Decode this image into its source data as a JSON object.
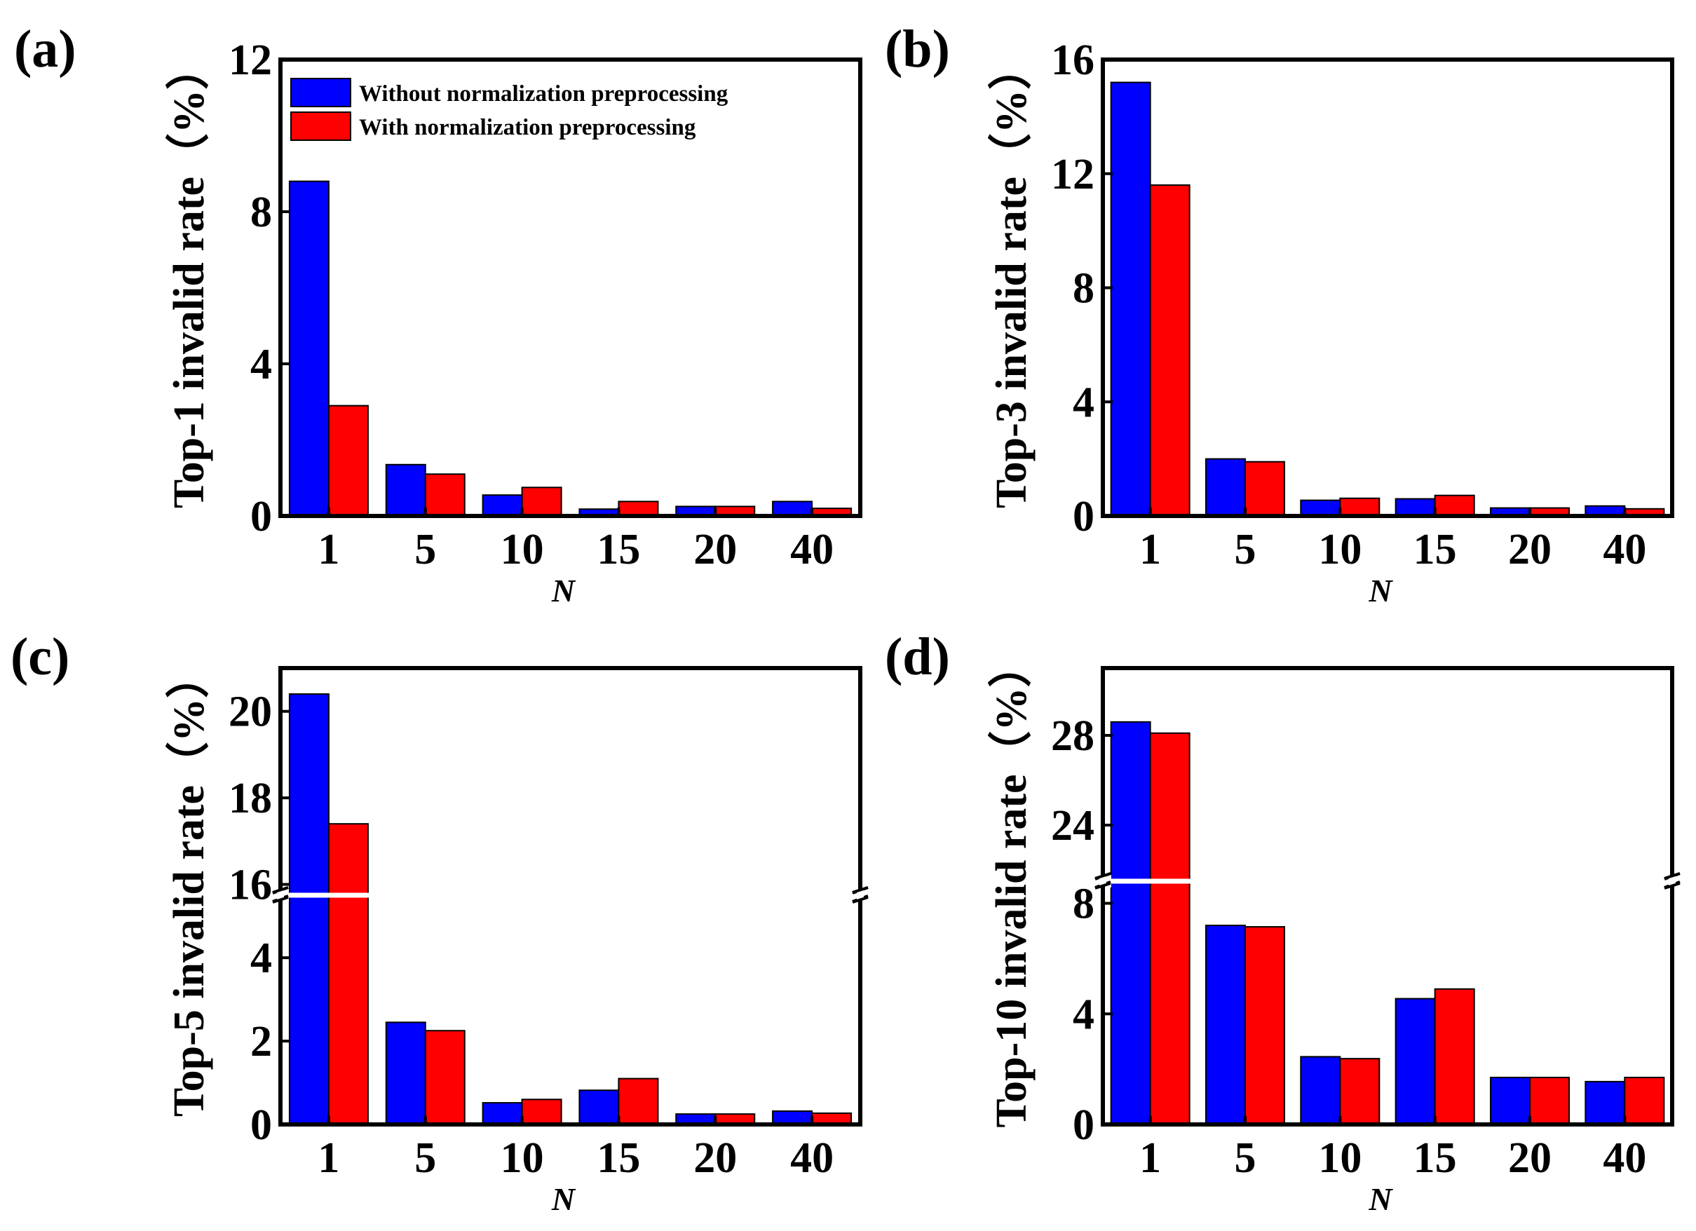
{
  "legend": {
    "series": [
      {
        "name": "Without normalization preprocessing",
        "color": "#0000ff"
      },
      {
        "name": "With normalization preprocessing",
        "color": "#ff0000"
      }
    ]
  },
  "chart_data": [
    {
      "panel": "(a)",
      "type": "bar",
      "ylabel": "Top-1 invalid rate（%）",
      "xlabel": "N",
      "categories": [
        "1",
        "5",
        "10",
        "15",
        "20",
        "40"
      ],
      "ylim": [
        0,
        12
      ],
      "yticks": [
        "0",
        "4",
        "8",
        "12"
      ],
      "series": [
        {
          "name": "Without normalization preprocessing",
          "values": [
            8.8,
            1.35,
            0.55,
            0.18,
            0.25,
            0.38
          ]
        },
        {
          "name": "With normalization preprocessing",
          "values": [
            2.9,
            1.1,
            0.75,
            0.38,
            0.25,
            0.2
          ]
        }
      ]
    },
    {
      "panel": "(b)",
      "type": "bar",
      "ylabel": "Top-3 invalid rate（%）",
      "xlabel": "N",
      "categories": [
        "1",
        "5",
        "10",
        "15",
        "20",
        "40"
      ],
      "ylim": [
        0,
        16
      ],
      "yticks": [
        "0",
        "4",
        "8",
        "12",
        "16"
      ],
      "series": [
        {
          "name": "Without normalization preprocessing",
          "values": [
            15.2,
            2.0,
            0.55,
            0.6,
            0.28,
            0.35
          ]
        },
        {
          "name": "With normalization preprocessing",
          "values": [
            11.6,
            1.9,
            0.62,
            0.72,
            0.28,
            0.25
          ]
        }
      ]
    },
    {
      "panel": "(c)",
      "type": "bar",
      "ylabel": "Top-5 invalid rate（%）",
      "xlabel": "N",
      "categories": [
        "1",
        "5",
        "10",
        "15",
        "20",
        "40"
      ],
      "axis_break": {
        "lower_range": [
          0,
          5.5
        ],
        "upper_range": [
          15.75,
          21
        ]
      },
      "yticks": [
        "0",
        "2",
        "4",
        "16",
        "18",
        "20"
      ],
      "series": [
        {
          "name": "Without normalization preprocessing",
          "values": [
            20.4,
            2.45,
            0.52,
            0.82,
            0.25,
            0.32
          ]
        },
        {
          "name": "With normalization preprocessing",
          "values": [
            17.4,
            2.25,
            0.6,
            1.1,
            0.25,
            0.27
          ]
        }
      ]
    },
    {
      "panel": "(d)",
      "type": "bar",
      "ylabel": "Top-10 invalid rate（%）",
      "xlabel": "N",
      "categories": [
        "1",
        "5",
        "10",
        "15",
        "20",
        "40"
      ],
      "axis_break": {
        "lower_range": [
          0,
          8.8
        ],
        "upper_range": [
          21.5,
          31
        ]
      },
      "yticks": [
        "0",
        "4",
        "8",
        "24",
        "28"
      ],
      "series": [
        {
          "name": "Without normalization preprocessing",
          "values": [
            28.6,
            7.2,
            2.45,
            4.55,
            1.7,
            1.55
          ]
        },
        {
          "name": "With normalization preprocessing",
          "values": [
            28.1,
            7.15,
            2.38,
            4.9,
            1.7,
            1.7
          ]
        }
      ]
    }
  ]
}
